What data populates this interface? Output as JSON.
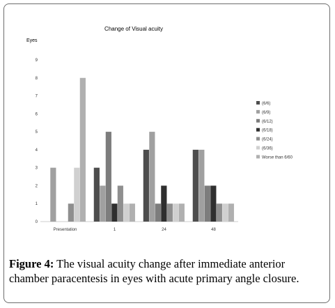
{
  "caption": {
    "label": "Figure 4:",
    "text": " The visual acuity change after immediate anterior chamber paracentesis in eyes with acute primary angle closure."
  },
  "chart_data": {
    "type": "bar",
    "title": "Change of Visual acuity",
    "ylabel": "Eyes",
    "xlabel": "",
    "ylim": [
      0,
      9
    ],
    "yticks": [
      "0",
      "1",
      "2",
      "3",
      "4",
      "5",
      "6",
      "7",
      "8",
      "9"
    ],
    "grid": false,
    "legend_position": "right",
    "categories": [
      "Presentation",
      "1",
      "24",
      "48"
    ],
    "series": [
      {
        "name": "(6/6)",
        "color": "#4d4d4d",
        "values": [
          0,
          3,
          4,
          4
        ]
      },
      {
        "name": "(6/9)",
        "color": "#a0a0a0",
        "values": [
          3,
          2,
          5,
          4
        ]
      },
      {
        "name": "(6/12)",
        "color": "#7d7d7d",
        "values": [
          0,
          5,
          1,
          2
        ]
      },
      {
        "name": "(6/18)",
        "color": "#2f2f2f",
        "values": [
          0,
          1,
          2,
          2
        ]
      },
      {
        "name": "(6/24)",
        "color": "#8f8f8f",
        "values": [
          1,
          2,
          1,
          1
        ]
      },
      {
        "name": "(6/36)",
        "color": "#d0d0d0",
        "values": [
          3,
          1,
          1,
          1
        ]
      },
      {
        "name": "Worse than 6/60",
        "color": "#b0b0b0",
        "values": [
          8,
          1,
          1,
          1
        ]
      }
    ]
  }
}
